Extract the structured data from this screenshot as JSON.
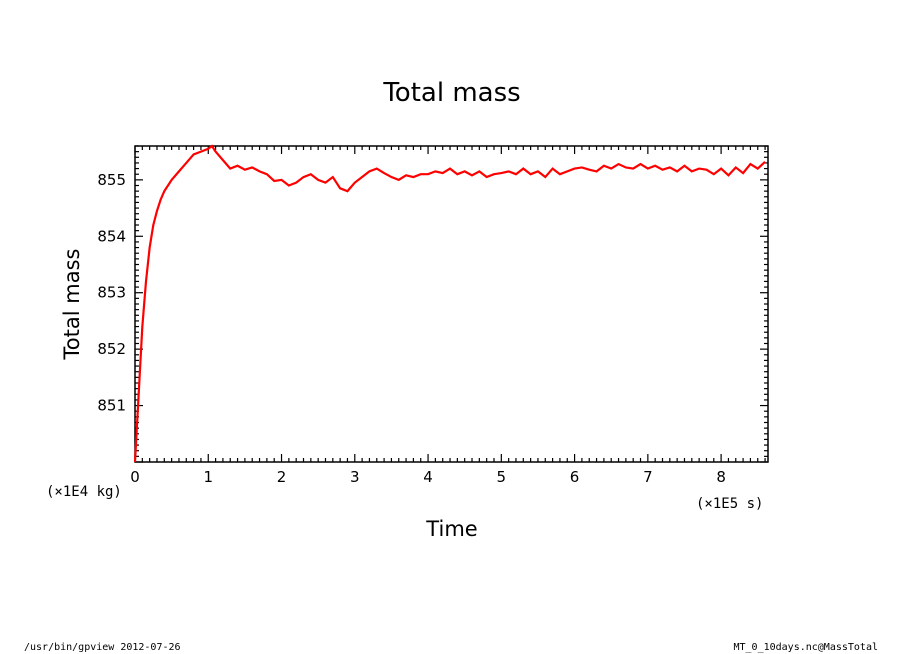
{
  "chart_data": {
    "type": "line",
    "title": "Total mass",
    "xlabel": "Time",
    "ylabel": "Total mass",
    "x_unit": "(×1E5 s)",
    "y_unit": "(×1E4 kg)",
    "xlim": [
      0,
      8.64
    ],
    "ylim": [
      850,
      855.6
    ],
    "x_ticks": [
      0,
      1,
      2,
      3,
      4,
      5,
      6,
      7,
      8
    ],
    "y_ticks": [
      851,
      852,
      853,
      854,
      855
    ],
    "grid": false,
    "series": [
      {
        "color": "#ff0000",
        "x": [
          0,
          0.05,
          0.1,
          0.15,
          0.2,
          0.25,
          0.3,
          0.35,
          0.4,
          0.5,
          0.6,
          0.7,
          0.8,
          0.9,
          1.0,
          1.05,
          1.1,
          1.2,
          1.3,
          1.4,
          1.5,
          1.6,
          1.7,
          1.8,
          1.9,
          2.0,
          2.1,
          2.2,
          2.3,
          2.4,
          2.5,
          2.6,
          2.7,
          2.8,
          2.9,
          3.0,
          3.1,
          3.2,
          3.3,
          3.4,
          3.5,
          3.6,
          3.7,
          3.8,
          3.9,
          4.0,
          4.1,
          4.2,
          4.3,
          4.4,
          4.5,
          4.6,
          4.7,
          4.8,
          4.9,
          5.0,
          5.1,
          5.2,
          5.3,
          5.4,
          5.5,
          5.6,
          5.7,
          5.8,
          5.9,
          6.0,
          6.1,
          6.2,
          6.3,
          6.4,
          6.5,
          6.6,
          6.7,
          6.8,
          6.9,
          7.0,
          7.1,
          7.2,
          7.3,
          7.4,
          7.5,
          7.6,
          7.7,
          7.8,
          7.9,
          8.0,
          8.1,
          8.2,
          8.3,
          8.4,
          8.5,
          8.6
        ],
        "y": [
          850.0,
          851.2,
          852.4,
          853.2,
          853.8,
          854.2,
          854.45,
          854.65,
          854.8,
          855.0,
          855.15,
          855.3,
          855.45,
          855.5,
          855.55,
          855.6,
          855.5,
          855.35,
          855.2,
          855.25,
          855.18,
          855.22,
          855.15,
          855.1,
          854.98,
          855.0,
          854.9,
          854.95,
          855.05,
          855.1,
          855.0,
          854.95,
          855.05,
          854.85,
          854.8,
          854.95,
          855.05,
          855.15,
          855.2,
          855.12,
          855.05,
          855.0,
          855.08,
          855.05,
          855.1,
          855.1,
          855.15,
          855.12,
          855.2,
          855.1,
          855.15,
          855.08,
          855.15,
          855.05,
          855.1,
          855.12,
          855.15,
          855.1,
          855.2,
          855.1,
          855.15,
          855.05,
          855.2,
          855.1,
          855.15,
          855.2,
          855.22,
          855.18,
          855.15,
          855.25,
          855.2,
          855.28,
          855.22,
          855.2,
          855.28,
          855.2,
          855.25,
          855.18,
          855.22,
          855.15,
          855.25,
          855.15,
          855.2,
          855.18,
          855.1,
          855.2,
          855.08,
          855.22,
          855.12,
          855.28,
          855.2,
          855.32
        ]
      }
    ]
  },
  "footer": {
    "left": "/usr/bin/gpview  2012-07-26",
    "right": "MT_0_10days.nc@MassTotal"
  }
}
